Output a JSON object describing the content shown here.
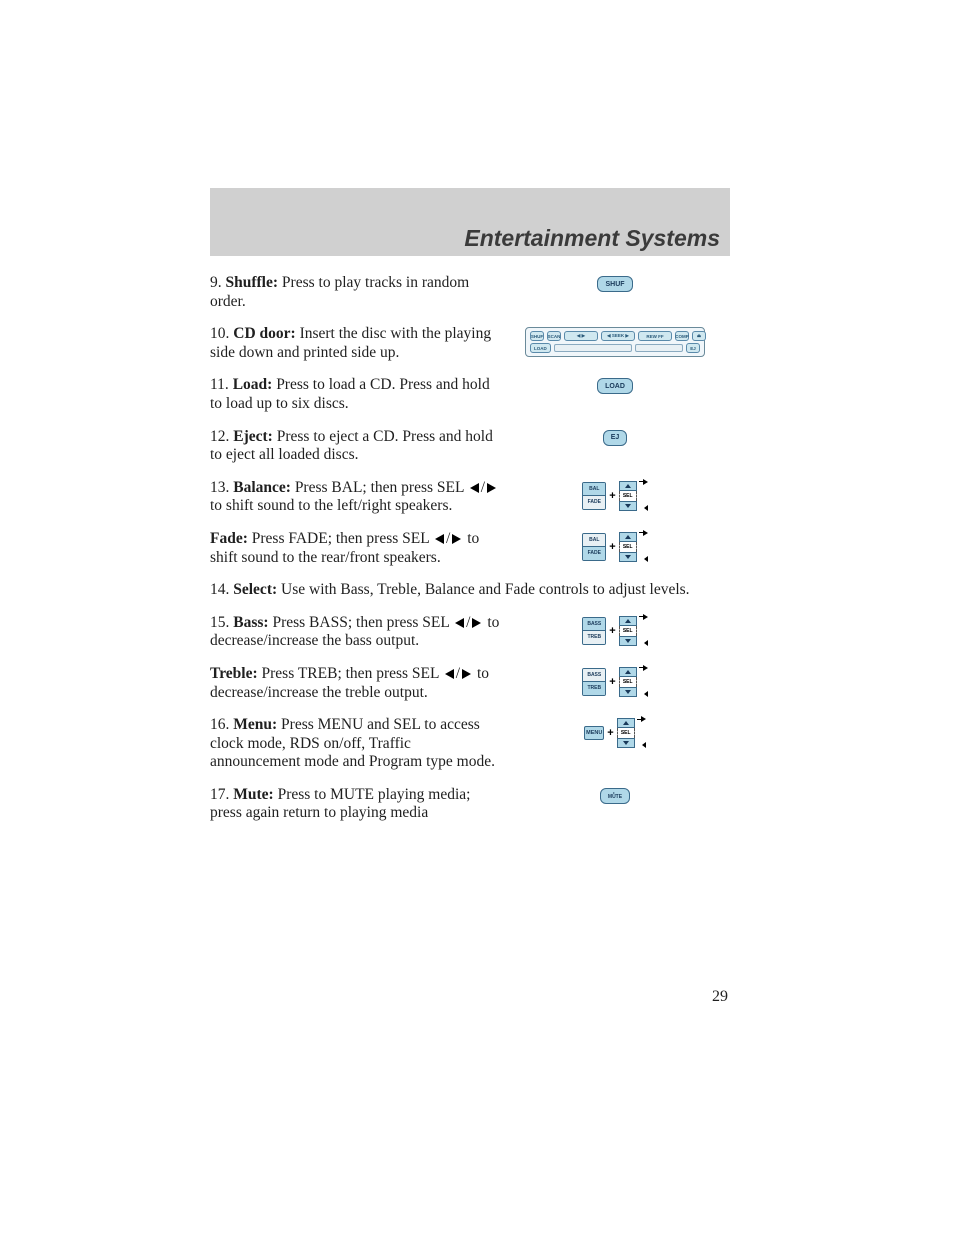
{
  "header": {
    "title": "Entertainment Systems"
  },
  "page_number": "29",
  "entries": [
    {
      "num": "9.",
      "label": "Shuffle:",
      "text": "Press to play tracks in random order.",
      "illus": "shuf"
    },
    {
      "num": "10.",
      "label": "CD door:",
      "text": "Insert the disc with the playing side down and printed side up.",
      "illus": "strip"
    },
    {
      "num": "11.",
      "label": "Load:",
      "text": "Press to load a CD. Press and hold to load up to six discs.",
      "illus": "load"
    },
    {
      "num": "12.",
      "label": "Eject:",
      "text": "Press to eject a CD. Press and hold to eject all loaded discs.",
      "illus": "ej"
    },
    {
      "num": "13.",
      "label": "Balance:",
      "text_pre": "Press BAL; then press SEL ",
      "text_post": " to shift sound to the left/right speakers.",
      "illus": "bal",
      "arrows": true
    },
    {
      "num": "",
      "label": "Fade:",
      "text_pre": "Press FADE; then press SEL ",
      "text_post": " to shift sound to the rear/front speakers.",
      "illus": "fade",
      "arrows": true
    },
    {
      "num": "14.",
      "label": "Select:",
      "text": "Use with Bass, Treble, Balance and Fade controls to adjust levels.",
      "illus": null,
      "full": true
    },
    {
      "num": "15.",
      "label": "Bass:",
      "text_pre": "Press BASS; then press SEL ",
      "text_post": " to decrease/increase the bass output.",
      "illus": "bass",
      "arrows": true
    },
    {
      "num": "",
      "label": "Treble:",
      "text_pre": "Press TREB; then press SEL ",
      "text_post": " to decrease/increase the treble output.",
      "illus": "treb",
      "arrows": true
    },
    {
      "num": "16.",
      "label": "Menu:",
      "text": "Press MENU and SEL to access clock mode, RDS on/off, Traffic announcement mode and Program type mode.",
      "illus": "menu"
    },
    {
      "num": "17.",
      "label": "Mute:",
      "text": "Press to MUTE playing media; press again return to playing media",
      "illus": "mute"
    }
  ],
  "buttons": {
    "shuf": "SHUF",
    "load": "LOAD",
    "ej": "EJ",
    "bal_top": "BAL",
    "bal_bot": "FADE",
    "bass_top": "BASS",
    "bass_bot": "TREB",
    "sel": "SEL",
    "menu": "MENU",
    "mute": "MUTE",
    "strip": {
      "r1": [
        "SHUF",
        "SCAN",
        "◀  ▶",
        "◀ SEEK ▶",
        "REW   FF",
        "COMP",
        "⏏"
      ],
      "r2": [
        "LOAD",
        "Pioneer",
        "",
        "EJ"
      ]
    }
  },
  "colors": {
    "btn_fill": "#b0d8e8",
    "btn_pale": "#e8f0f4",
    "btn_border": "#3a6a8a",
    "header_bg": "#d0d0d0",
    "text": "#1f1f1f"
  }
}
